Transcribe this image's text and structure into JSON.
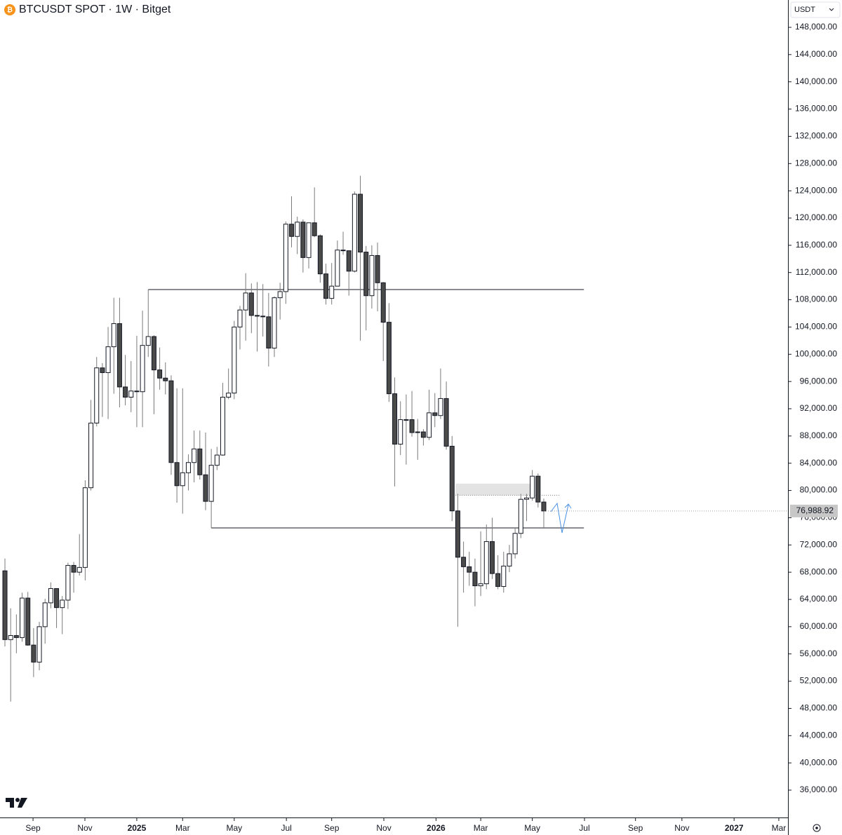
{
  "chart_data": {
    "type": "candlestick",
    "title": "BTCUSDT SPOT · 1W · Bitget",
    "currency": "USDT",
    "up_color": "#ffffff",
    "down_color": "#4a4a4a",
    "x": [
      0,
      1,
      2,
      3,
      4,
      5,
      6,
      7,
      8,
      9,
      10,
      11,
      12,
      13,
      14,
      15,
      16,
      17,
      18,
      19,
      20,
      21,
      22,
      23,
      24,
      25,
      26,
      27,
      28,
      29,
      30,
      31,
      32,
      33,
      34,
      35,
      36,
      37,
      38,
      39,
      40,
      41,
      42,
      43,
      44,
      45,
      46,
      47,
      48,
      49,
      50,
      51,
      52,
      53,
      54,
      55,
      56,
      57,
      58,
      59,
      60,
      61,
      62,
      63,
      64,
      65,
      66,
      67,
      68,
      69,
      70,
      71,
      72,
      73,
      74,
      75,
      76,
      77,
      78,
      79,
      80,
      81,
      82,
      83,
      84,
      85,
      86,
      87,
      88,
      89,
      90,
      91,
      92,
      93,
      94
    ],
    "open": [
      68200,
      58100,
      58700,
      58400,
      64200,
      57300,
      54800,
      60000,
      63500,
      65600,
      62800,
      63900,
      69000,
      68000,
      68700,
      80400,
      89900,
      98000,
      97300,
      101100,
      104500,
      95200,
      93700,
      94600,
      94500,
      101300,
      102600,
      97700,
      96500,
      96100,
      84100,
      80700,
      82600,
      84100,
      86100,
      82300,
      78400,
      83700,
      85200,
      93700,
      94300,
      104000,
      106500,
      109000,
      105700,
      105600,
      105500,
      100900,
      108300,
      109200,
      119100,
      117300,
      119400,
      114200,
      119300,
      117400,
      111800,
      108200,
      110000,
      115300,
      115200,
      112200,
      123500,
      115000,
      108600,
      114500,
      110500,
      104700,
      94200,
      86800,
      90400,
      90400,
      88500,
      88600,
      87800,
      91400,
      91000,
      93500,
      86500,
      77000,
      70200,
      68800,
      68000,
      66000,
      66300,
      72500,
      67800,
      65900,
      68900,
      70700,
      73700,
      78700,
      78900,
      82100,
      78300
    ],
    "high": [
      70000,
      62700,
      61800,
      65000,
      65100,
      59800,
      60700,
      64100,
      66500,
      65600,
      64500,
      69400,
      69500,
      73600,
      81500,
      93300,
      99600,
      98700,
      104000,
      108300,
      108300,
      99900,
      99000,
      102700,
      106400,
      109500,
      102800,
      101000,
      98800,
      96900,
      95000,
      95000,
      85300,
      88800,
      88800,
      88500,
      86100,
      86400,
      95800,
      97900,
      104900,
      107100,
      111900,
      110400,
      110600,
      110300,
      109000,
      108500,
      110500,
      119500,
      123200,
      120200,
      119800,
      119300,
      124500,
      117600,
      113300,
      113400,
      116700,
      118000,
      115200,
      123900,
      126200,
      115900,
      116000,
      116400,
      110600,
      107500,
      96600,
      93100,
      94100,
      94600,
      90500,
      89000,
      94800,
      94300,
      97900,
      96000,
      88000,
      79500,
      72500,
      71000,
      70000,
      74000,
      75000,
      76000,
      70500,
      71000,
      72000,
      74500,
      79500,
      79500,
      83000,
      82500,
      78800
    ],
    "low": [
      57100,
      49000,
      56100,
      57800,
      57200,
      52600,
      53600,
      57500,
      62700,
      59800,
      58900,
      62600,
      65000,
      67500,
      66800,
      80000,
      89400,
      90800,
      90500,
      94200,
      92200,
      92500,
      91500,
      89300,
      89300,
      99600,
      91200,
      94800,
      94100,
      82300,
      78200,
      76600,
      80000,
      81200,
      81600,
      77100,
      74500,
      83000,
      85100,
      93400,
      93400,
      100700,
      102000,
      103100,
      100400,
      102600,
      98200,
      99600,
      105100,
      107400,
      115700,
      114700,
      112000,
      112600,
      117200,
      110500,
      107300,
      107300,
      110000,
      114600,
      108600,
      112000,
      102000,
      103500,
      106700,
      106300,
      99000,
      93000,
      80600,
      85200,
      83800,
      87900,
      84500,
      86600,
      87400,
      89300,
      90500,
      86000,
      75500,
      60000,
      65000,
      66000,
      63000,
      64500,
      65500,
      67000,
      65500,
      65000,
      68000,
      70000,
      73000,
      75500,
      78500,
      77500,
      74500
    ],
    "close": [
      58100,
      58700,
      58400,
      64200,
      57300,
      54800,
      60000,
      63500,
      65600,
      62800,
      63900,
      69000,
      68000,
      68700,
      80400,
      89900,
      98000,
      97300,
      101100,
      104500,
      95200,
      93700,
      94600,
      94500,
      101300,
      102600,
      97700,
      96500,
      96100,
      84100,
      80700,
      82600,
      84100,
      86100,
      82300,
      78400,
      83700,
      85200,
      93700,
      94300,
      104000,
      106500,
      109000,
      105700,
      105600,
      105500,
      100900,
      108300,
      109200,
      119100,
      117300,
      119400,
      114200,
      119300,
      117400,
      111800,
      108200,
      110000,
      115300,
      115200,
      112200,
      123500,
      115000,
      108600,
      114500,
      110500,
      104700,
      94200,
      86800,
      90400,
      90400,
      88500,
      88600,
      87800,
      91400,
      91000,
      93500,
      86500,
      77000,
      70200,
      68800,
      68000,
      66000,
      66300,
      72500,
      67800,
      65900,
      68900,
      70700,
      73700,
      78700,
      78900,
      82100,
      78300,
      76988.92
    ],
    "last_price": {
      "value": 76988.92,
      "label": "76,988.92"
    },
    "levels": [
      {
        "price": 109500,
        "from": 25,
        "to": 101
      },
      {
        "price": 74500,
        "from": 36,
        "to": 101
      }
    ],
    "zone": {
      "from": 78.6,
      "to": 92,
      "low": 79300,
      "high": 81000,
      "color": "#e3e3e3"
    },
    "xlim": [
      -0.86,
      136.6
    ],
    "xticks": [
      {
        "value": 4.9,
        "label": "Sep"
      },
      {
        "value": 13.95,
        "label": "Nov"
      },
      {
        "value": 23.0,
        "label": "2025"
      },
      {
        "value": 31.0,
        "label": "Mar"
      },
      {
        "value": 40.0,
        "label": "May"
      },
      {
        "value": 49.1,
        "label": "Jul"
      },
      {
        "value": 57.0,
        "label": "Sep"
      },
      {
        "value": 66.1,
        "label": "Nov"
      },
      {
        "value": 75.2,
        "label": "2026"
      },
      {
        "value": 83.0,
        "label": "Mar"
      },
      {
        "value": 92.0,
        "label": "May"
      },
      {
        "value": 101.1,
        "label": "Jul"
      },
      {
        "value": 110.0,
        "label": "Sep"
      },
      {
        "value": 118.1,
        "label": "Nov"
      },
      {
        "value": 127.2,
        "label": "2027"
      },
      {
        "value": 135.0,
        "label": "Mar"
      }
    ],
    "ylim": [
      31986,
      152015
    ],
    "yticks": [
      {
        "value": 36000,
        "label": "36,000.00"
      },
      {
        "value": 40000,
        "label": "40,000.00"
      },
      {
        "value": 44000,
        "label": "44,000.00"
      },
      {
        "value": 48000,
        "label": "48,000.00"
      },
      {
        "value": 52000,
        "label": "52,000.00"
      },
      {
        "value": 56000,
        "label": "56,000.00"
      },
      {
        "value": 60000,
        "label": "60,000.00"
      },
      {
        "value": 64000,
        "label": "64,000.00"
      },
      {
        "value": 68000,
        "label": "68,000.00"
      },
      {
        "value": 72000,
        "label": "72,000.00"
      },
      {
        "value": 76000,
        "label": "76,000.00"
      },
      {
        "value": 80000,
        "label": "80,000.00"
      },
      {
        "value": 84000,
        "label": "84,000.00"
      },
      {
        "value": 88000,
        "label": "88,000.00"
      },
      {
        "value": 92000,
        "label": "92,000.00"
      },
      {
        "value": 96000,
        "label": "96,000.00"
      },
      {
        "value": 100000,
        "label": "100,000.00"
      },
      {
        "value": 104000,
        "label": "104,000.00"
      },
      {
        "value": 108000,
        "label": "108,000.00"
      },
      {
        "value": 112000,
        "label": "112,000.00"
      },
      {
        "value": 116000,
        "label": "116,000.00"
      },
      {
        "value": 120000,
        "label": "120,000.00"
      },
      {
        "value": 124000,
        "label": "124,000.00"
      },
      {
        "value": 128000,
        "label": "128,000.00"
      },
      {
        "value": 132000,
        "label": "132,000.00"
      },
      {
        "value": 136000,
        "label": "136,000.00"
      },
      {
        "value": 140000,
        "label": "140,000.00"
      },
      {
        "value": 144000,
        "label": "144,000.00"
      },
      {
        "value": 148000,
        "label": "148,000.00"
      }
    ]
  }
}
